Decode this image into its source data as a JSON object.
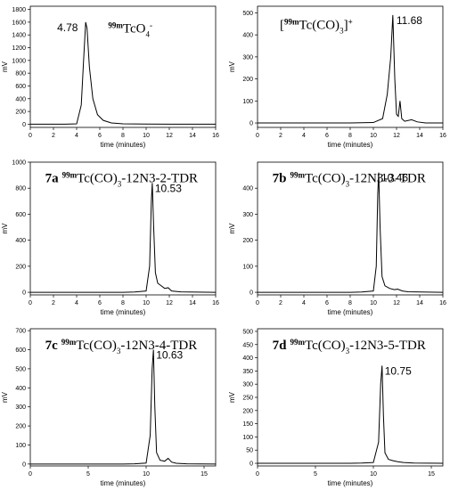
{
  "chart_data": [
    {
      "type": "line",
      "title_parts": [
        {
          "text": "99m",
          "style": "sup"
        },
        {
          "text": "TcO",
          "style": "normal"
        },
        {
          "text": "4",
          "style": "sub"
        },
        {
          "text": "-",
          "style": "sup"
        }
      ],
      "peak_label": "4.78",
      "x_label": "time (minutes)",
      "y_label": "mV",
      "color": "#000000",
      "x": [
        0,
        1,
        2,
        3,
        4,
        4.4,
        4.6,
        4.78,
        4.9,
        5.1,
        5.4,
        5.8,
        6.3,
        7,
        8,
        10,
        12,
        14,
        16
      ],
      "values": [
        0,
        0,
        0,
        0,
        5,
        300,
        1000,
        1600,
        1500,
        900,
        400,
        150,
        60,
        20,
        5,
        2,
        0,
        0,
        0
      ],
      "xlim": [
        0,
        16
      ],
      "ylim": [
        -50,
        1850
      ],
      "xticks": [
        0,
        2,
        4,
        6,
        8,
        10,
        12,
        14,
        16
      ],
      "yticks": [
        0,
        200,
        400,
        600,
        800,
        1000,
        1200,
        1400,
        1600,
        1800
      ]
    },
    {
      "type": "line",
      "title_parts": [
        {
          "text": "[",
          "style": "normal"
        },
        {
          "text": "99m",
          "style": "sup"
        },
        {
          "text": "Tc(CO)",
          "style": "normal"
        },
        {
          "text": "3",
          "style": "sub"
        },
        {
          "text": "]",
          "style": "normal"
        },
        {
          "text": "+",
          "style": "sup"
        }
      ],
      "peak_label": "11.68",
      "x_label": "time (minutes)",
      "y_label": "mV",
      "color": "#000000",
      "x": [
        0,
        2,
        4,
        6,
        8,
        10,
        10.8,
        11.2,
        11.5,
        11.68,
        11.85,
        12.0,
        12.15,
        12.3,
        12.45,
        12.7,
        13.3,
        13.8,
        14.5,
        16
      ],
      "values": [
        0,
        0,
        0,
        0,
        0,
        2,
        20,
        130,
        300,
        490,
        200,
        40,
        30,
        100,
        20,
        8,
        15,
        5,
        0,
        0
      ],
      "xlim": [
        0,
        16
      ],
      "ylim": [
        -20,
        530
      ],
      "xticks": [
        0,
        2,
        4,
        6,
        8,
        10,
        12,
        14,
        16
      ],
      "yticks": [
        0,
        100,
        200,
        300,
        400,
        500
      ]
    },
    {
      "type": "line",
      "title_parts": [
        {
          "text": "7a",
          "style": "bold"
        },
        {
          "text": "99m",
          "style": "sup"
        },
        {
          "text": "Tc(CO)",
          "style": "normal"
        },
        {
          "text": "3",
          "style": "sub"
        },
        {
          "text": "-12N3-2-TDR",
          "style": "normal"
        }
      ],
      "peak_label": "10.53",
      "x_label": "time (minutes)",
      "y_label": "mV",
      "color": "#000000",
      "x": [
        0,
        2,
        4,
        6,
        8,
        9,
        10,
        10.3,
        10.45,
        10.53,
        10.65,
        10.8,
        11,
        11.3,
        11.6,
        11.9,
        12.2,
        13,
        16
      ],
      "values": [
        0,
        0,
        0,
        0,
        0,
        2,
        10,
        200,
        700,
        840,
        500,
        150,
        70,
        50,
        30,
        35,
        10,
        3,
        0
      ],
      "xlim": [
        0,
        16
      ],
      "ylim": [
        -20,
        1000
      ],
      "xticks": [
        0,
        2,
        4,
        6,
        8,
        10,
        12,
        14,
        16
      ],
      "yticks": [
        0,
        200,
        400,
        600,
        800,
        1000
      ]
    },
    {
      "type": "line",
      "title_parts": [
        {
          "text": "7b",
          "style": "bold"
        },
        {
          "text": "99m",
          "style": "sup"
        },
        {
          "text": "Tc(CO)",
          "style": "normal"
        },
        {
          "text": "3",
          "style": "sub"
        },
        {
          "text": "-12N3-3-TDR",
          "style": "normal"
        }
      ],
      "peak_label": "10.46",
      "x_label": "time (minutes)",
      "y_label": "mV",
      "color": "#000000",
      "x": [
        0,
        2,
        4,
        6,
        8,
        9,
        10,
        10.25,
        10.38,
        10.46,
        10.58,
        10.75,
        11,
        11.4,
        11.8,
        12.1,
        12.5,
        13,
        16
      ],
      "values": [
        0,
        0,
        0,
        0,
        0,
        1,
        5,
        100,
        380,
        460,
        250,
        60,
        25,
        15,
        10,
        12,
        5,
        2,
        0
      ],
      "xlim": [
        0,
        16
      ],
      "ylim": [
        -10,
        500
      ],
      "xticks": [
        0,
        2,
        4,
        6,
        8,
        10,
        12,
        14,
        16
      ],
      "yticks": [
        0,
        100,
        200,
        300,
        400
      ]
    },
    {
      "type": "line",
      "title_parts": [
        {
          "text": "7c",
          "style": "bold"
        },
        {
          "text": "99m",
          "style": "sup"
        },
        {
          "text": "Tc(CO)",
          "style": "normal"
        },
        {
          "text": "3",
          "style": "sub"
        },
        {
          "text": "-12N3-4-TDR",
          "style": "normal"
        }
      ],
      "peak_label": "10.63",
      "x_label": "time (minutes)",
      "y_label": "mV",
      "color": "#000000",
      "x": [
        0,
        2,
        4,
        6,
        8,
        9,
        10,
        10.35,
        10.52,
        10.63,
        10.75,
        10.9,
        11.2,
        11.6,
        11.9,
        12.2,
        12.6,
        13.5,
        16
      ],
      "values": [
        0,
        0,
        0,
        0,
        0,
        1,
        5,
        150,
        500,
        600,
        300,
        60,
        20,
        15,
        30,
        10,
        4,
        1,
        0
      ],
      "xlim": [
        0,
        16
      ],
      "ylim": [
        -10,
        710
      ],
      "xticks": [
        0,
        5,
        10,
        15
      ],
      "yticks": [
        0,
        100,
        200,
        300,
        400,
        500,
        600,
        700
      ]
    },
    {
      "type": "line",
      "title_parts": [
        {
          "text": "7d",
          "style": "bold"
        },
        {
          "text": "99m",
          "style": "sup"
        },
        {
          "text": "Tc(CO)",
          "style": "normal"
        },
        {
          "text": "3",
          "style": "sub"
        },
        {
          "text": "-12N3-5-TDR",
          "style": "normal"
        }
      ],
      "peak_label": "10.75",
      "x_label": "time (minutes)",
      "y_label": "mV",
      "color": "#000000",
      "x": [
        0,
        2,
        4,
        6,
        8,
        9,
        10,
        10.45,
        10.63,
        10.75,
        10.87,
        11.0,
        11.3,
        11.7,
        12.1,
        12.6,
        13.5,
        16
      ],
      "values": [
        0,
        0,
        0,
        0,
        0,
        1,
        3,
        80,
        300,
        370,
        180,
        40,
        15,
        10,
        6,
        3,
        1,
        0
      ],
      "xlim": [
        0,
        16
      ],
      "ylim": [
        -10,
        510
      ],
      "xticks": [
        0,
        5,
        10,
        15
      ],
      "yticks": [
        0,
        50,
        100,
        150,
        200,
        250,
        300,
        350,
        400,
        450,
        500
      ]
    }
  ]
}
